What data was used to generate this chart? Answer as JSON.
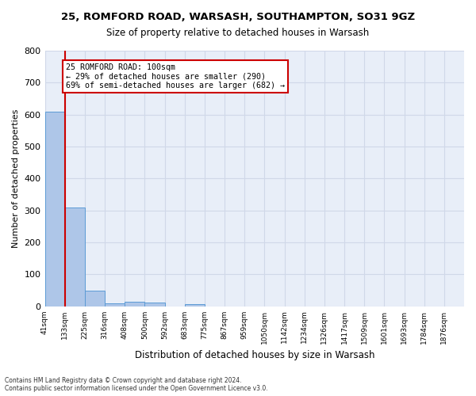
{
  "title1": "25, ROMFORD ROAD, WARSASH, SOUTHAMPTON, SO31 9GZ",
  "title2": "Size of property relative to detached houses in Warsash",
  "xlabel": "Distribution of detached houses by size in Warsash",
  "ylabel": "Number of detached properties",
  "footnote": "Contains HM Land Registry data © Crown copyright and database right 2024.\nContains public sector information licensed under the Open Government Licence v3.0.",
  "bin_labels": [
    "41sqm",
    "133sqm",
    "225sqm",
    "316sqm",
    "408sqm",
    "500sqm",
    "592sqm",
    "683sqm",
    "775sqm",
    "867sqm",
    "959sqm",
    "1050sqm",
    "1142sqm",
    "1234sqm",
    "1326sqm",
    "1417sqm",
    "1509sqm",
    "1601sqm",
    "1693sqm",
    "1784sqm",
    "1876sqm"
  ],
  "bar_heights": [
    610,
    310,
    50,
    10,
    13,
    12,
    0,
    7,
    0,
    0,
    0,
    0,
    0,
    0,
    0,
    0,
    0,
    0,
    0,
    0
  ],
  "bar_color": "#aec6e8",
  "bar_edge_color": "#5b9bd5",
  "grid_color": "#d0d8e8",
  "background_color": "#e8eef8",
  "red_line_x": 1,
  "annotation_text": "25 ROMFORD ROAD: 100sqm\n← 29% of detached houses are smaller (290)\n69% of semi-detached houses are larger (682) →",
  "annotation_box_color": "#ffffff",
  "annotation_border_color": "#cc0000",
  "ylim": [
    0,
    800
  ],
  "yticks": [
    0,
    100,
    200,
    300,
    400,
    500,
    600,
    700,
    800
  ]
}
